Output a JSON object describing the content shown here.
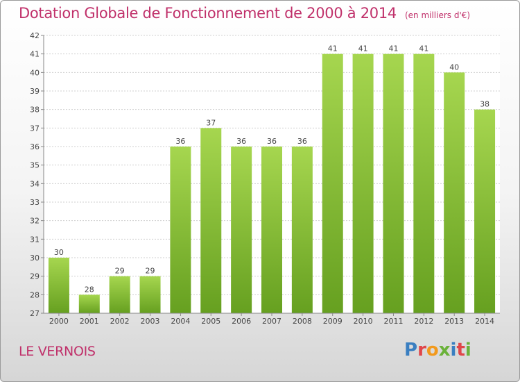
{
  "header": {
    "title": "Dotation Globale de Fonctionnement de 2000 à 2014",
    "subtitle": "(en milliers d'€)"
  },
  "footer": {
    "commune": "LE VERNOIS",
    "logo_text": "Proxiti",
    "logo_colors": [
      "#3a7fc1",
      "#e0464a",
      "#f29a1d",
      "#6bb23a",
      "#3a7fc1",
      "#e0464a",
      "#6bb23a"
    ]
  },
  "colors": {
    "bar_light": "#a6d64f",
    "bar_dark": "#66a020",
    "title": "#c0306a",
    "plot_bg": "#ffffff",
    "grid": "#cfcfcf"
  },
  "chart_data": {
    "type": "bar",
    "categories": [
      "2000",
      "2001",
      "2002",
      "2003",
      "2004",
      "2005",
      "2006",
      "2007",
      "2008",
      "2009",
      "2010",
      "2011",
      "2012",
      "2013",
      "2014"
    ],
    "values": [
      30,
      28,
      29,
      29,
      36,
      37,
      36,
      36,
      36,
      41,
      41,
      41,
      41,
      40,
      38
    ],
    "data_labels": [
      "30",
      "28",
      "29",
      "29",
      "36",
      "37",
      "36",
      "36",
      "36",
      "41",
      "41",
      "41",
      "41",
      "40",
      "38"
    ],
    "ylim": [
      27,
      42
    ],
    "yticks": [
      27,
      28,
      29,
      30,
      31,
      32,
      33,
      34,
      35,
      36,
      37,
      38,
      39,
      40,
      41,
      42
    ],
    "grid": true,
    "xlabel": "",
    "ylabel": ""
  }
}
